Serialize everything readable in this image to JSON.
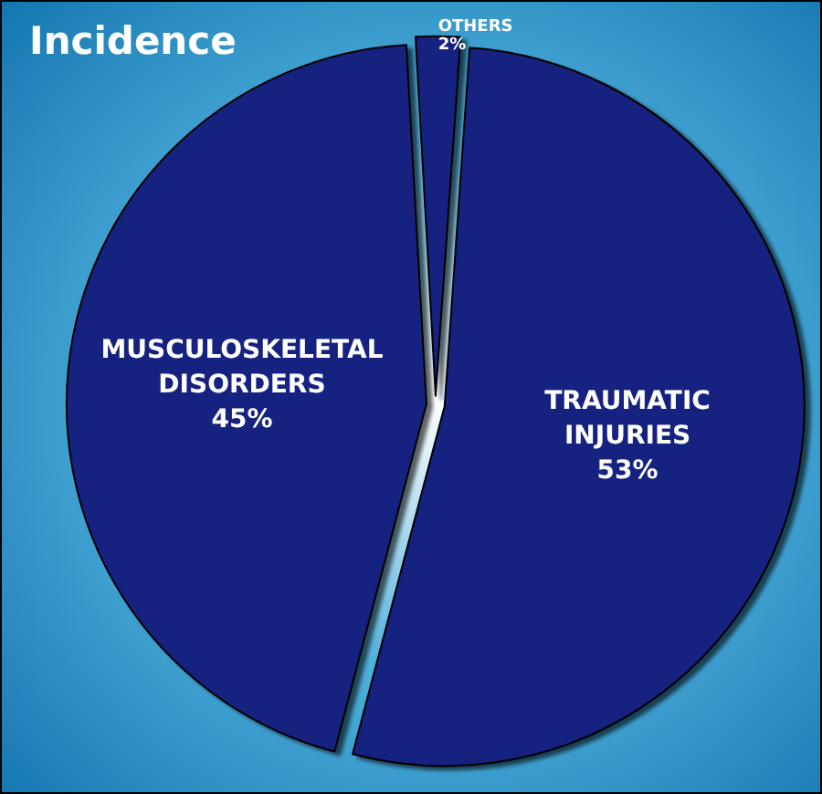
{
  "chart_data": {
    "type": "pie",
    "title": "Incidence",
    "categories": [
      "TRAUMATIC INJURIES",
      "MUSCULOSKELETAL DISORDERS",
      "OTHERS"
    ],
    "values": [
      53,
      45,
      2
    ],
    "colors": [
      "#15207f",
      "#15207f",
      "#15207f"
    ],
    "value_labels": [
      "53%",
      "45%",
      "2%"
    ],
    "legend": false
  }
}
